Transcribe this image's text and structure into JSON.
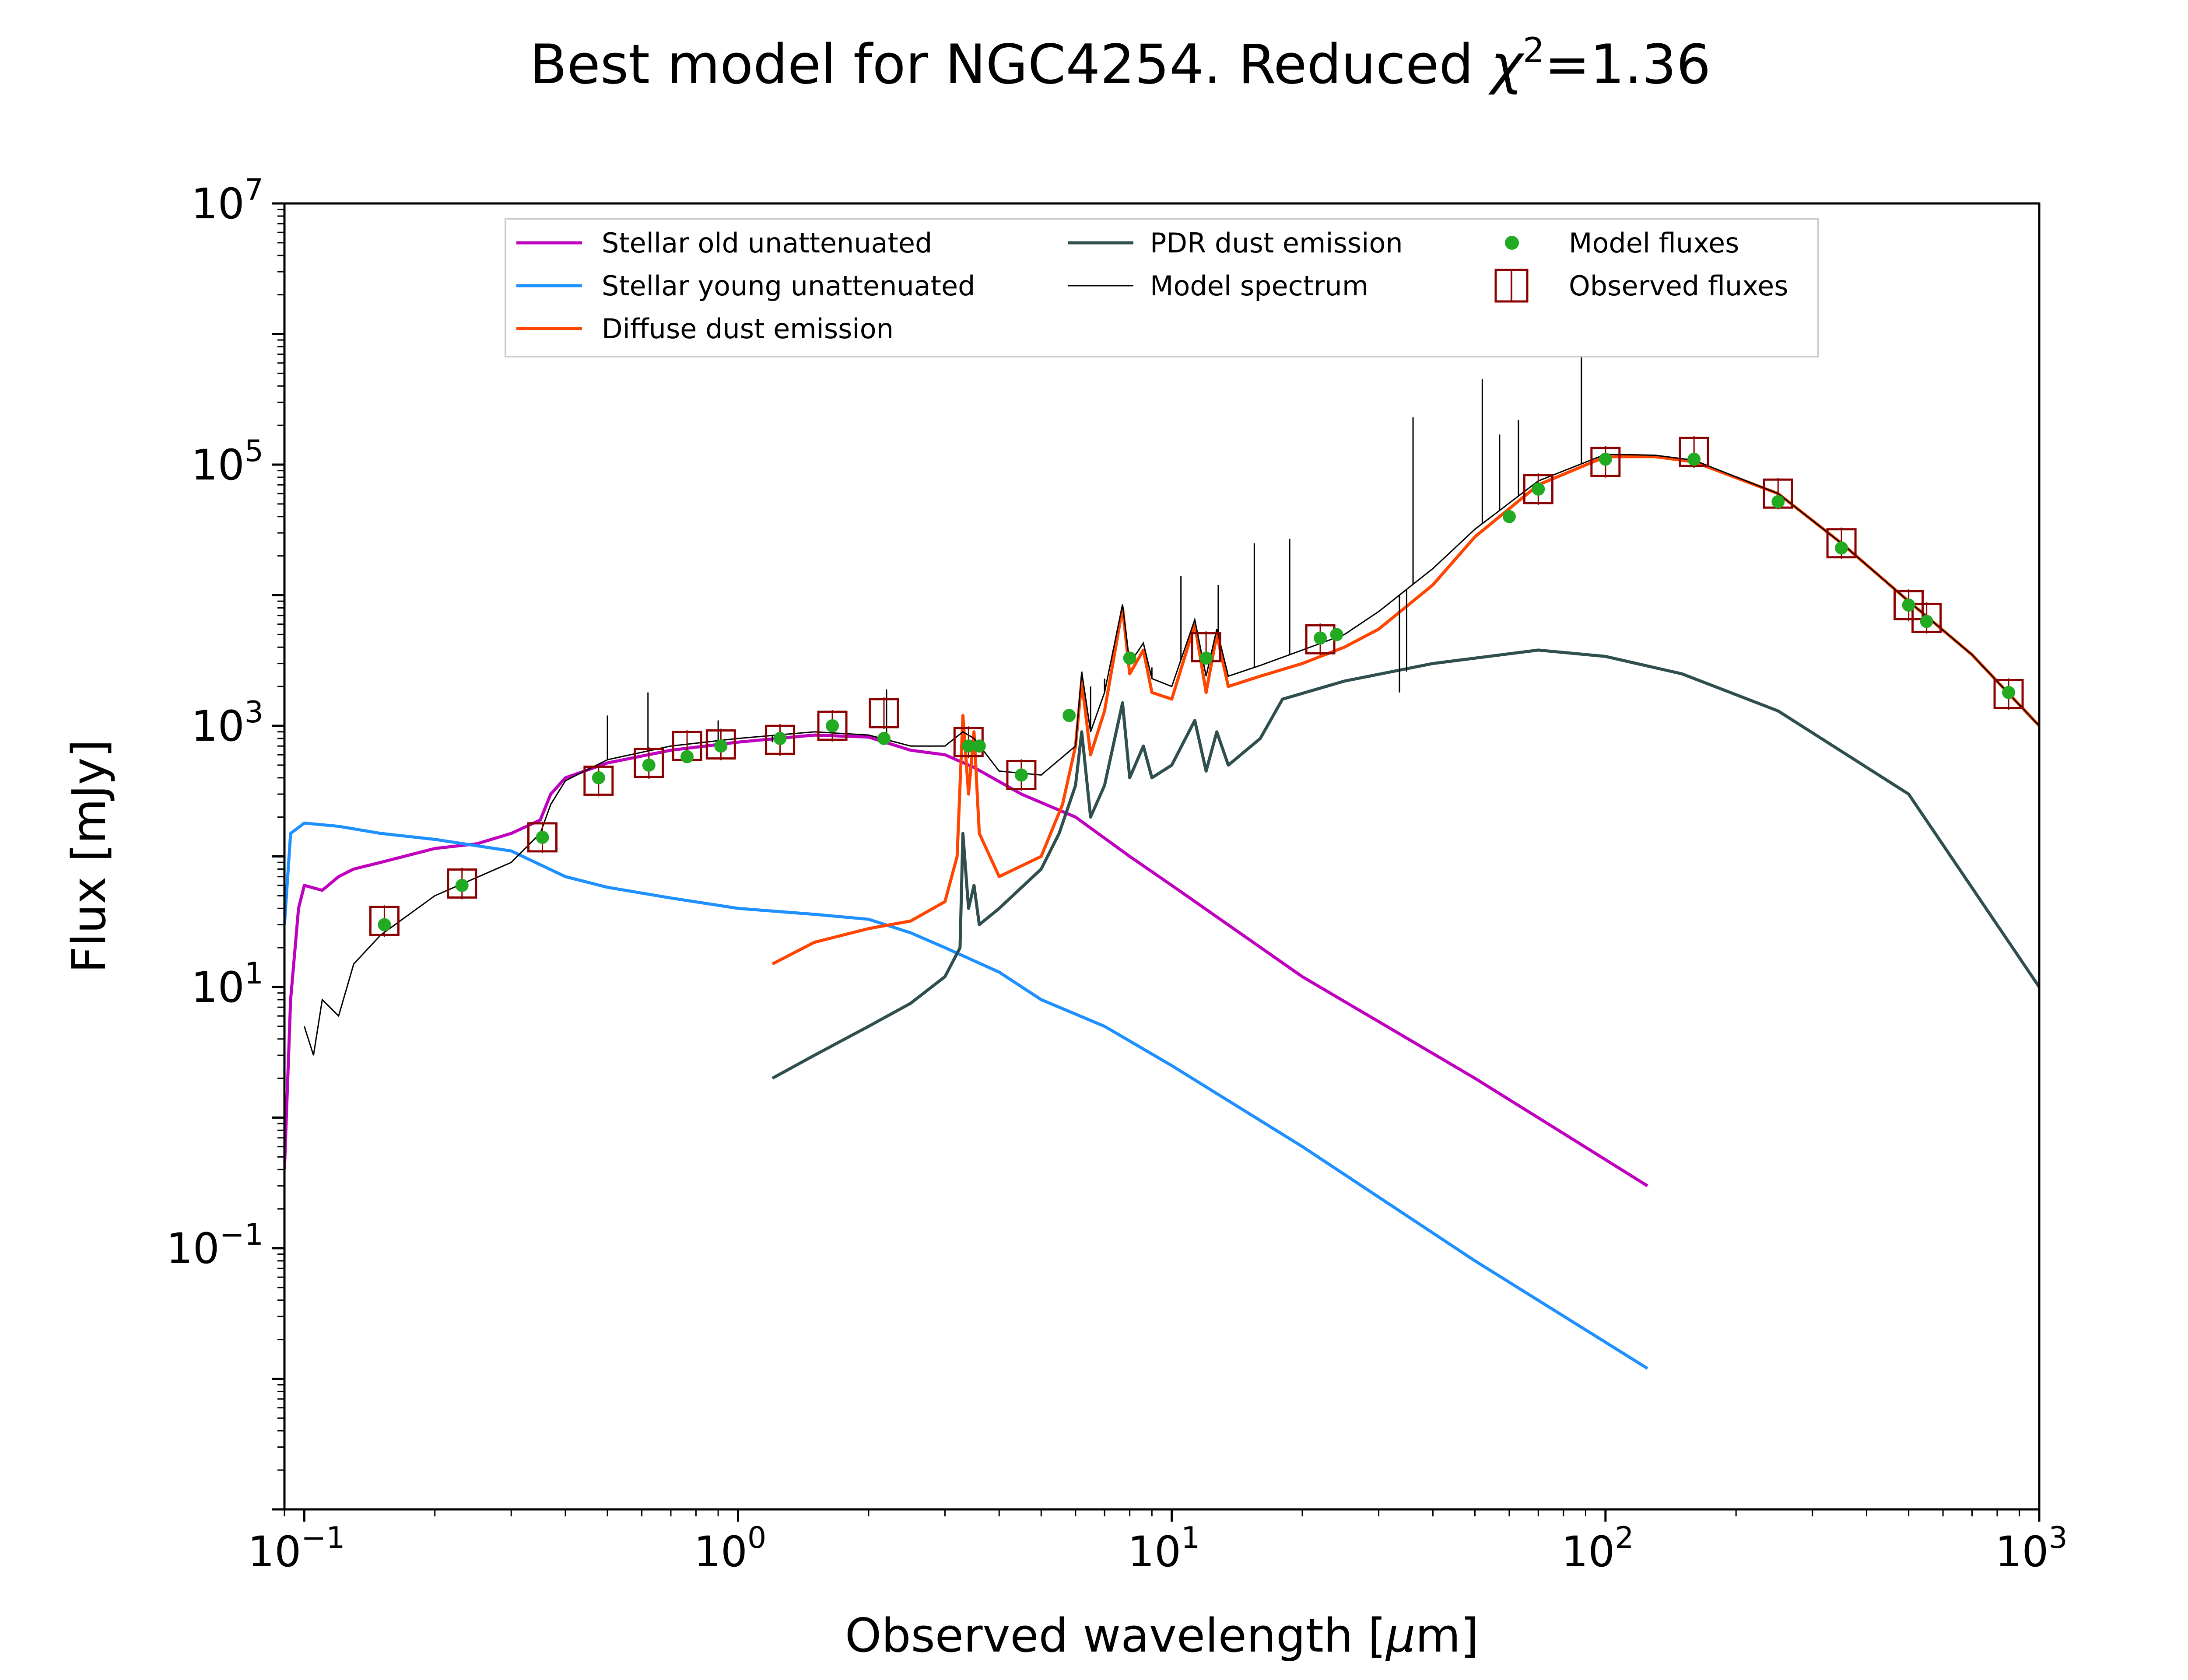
{
  "chart_data": {
    "type": "line",
    "title": "Best model for NGC4254. Reduced χ²=1.36",
    "title_parts": {
      "prefix": "Best model for NGC4254. Reduced ",
      "chi": "χ",
      "sup": "2",
      "suffix": "=1.36"
    },
    "xlabel": "Observed wavelength [μm]",
    "xlabel_parts": {
      "prefix": "Observed wavelength [",
      "mu": "μ",
      "suffix": "m]"
    },
    "ylabel": "Flux [mJy]",
    "xscale": "log",
    "yscale": "log",
    "xlim": [
      0.09,
      1000
    ],
    "ylim": [
      0.001,
      10000000
    ],
    "x_ticks": [
      {
        "base": "10",
        "exp": "−1",
        "value": 0.1
      },
      {
        "base": "10",
        "exp": "0",
        "value": 1
      },
      {
        "base": "10",
        "exp": "1",
        "value": 10
      },
      {
        "base": "10",
        "exp": "2",
        "value": 100
      },
      {
        "base": "10",
        "exp": "3",
        "value": 1000
      }
    ],
    "y_ticks": [
      {
        "base": "10",
        "exp": "−1",
        "value": 0.1
      },
      {
        "base": "10",
        "exp": "1",
        "value": 10
      },
      {
        "base": "10",
        "exp": "3",
        "value": 1000
      },
      {
        "base": "10",
        "exp": "5",
        "value": 100000
      },
      {
        "base": "10",
        "exp": "7",
        "value": 10000000
      }
    ],
    "legend": {
      "location": "top-center",
      "entries": [
        {
          "label": "Stellar old unattenuated",
          "color": "#bf00bf",
          "kind": "line"
        },
        {
          "label": "Stellar young unattenuated",
          "color": "#1e90ff",
          "kind": "line"
        },
        {
          "label": "Diffuse dust emission",
          "color": "#ff4500",
          "kind": "line"
        },
        {
          "label": "PDR dust emission",
          "color": "#2f4f4f",
          "kind": "line"
        },
        {
          "label": "Model spectrum",
          "color": "#000000",
          "kind": "thin-line"
        },
        {
          "label": "Model fluxes",
          "color": "#22aa22",
          "kind": "dot"
        },
        {
          "label": "Observed fluxes",
          "color": "#8b0000",
          "kind": "square"
        }
      ]
    },
    "series": [
      {
        "name": "Stellar old unattenuated",
        "color": "#bf00bf",
        "points": [
          [
            0.09,
            0.4
          ],
          [
            0.093,
            8
          ],
          [
            0.097,
            40
          ],
          [
            0.1,
            60
          ],
          [
            0.11,
            55
          ],
          [
            0.12,
            70
          ],
          [
            0.13,
            80
          ],
          [
            0.15,
            90
          ],
          [
            0.2,
            115
          ],
          [
            0.25,
            125
          ],
          [
            0.3,
            150
          ],
          [
            0.35,
            190
          ],
          [
            0.37,
            300
          ],
          [
            0.4,
            400
          ],
          [
            0.5,
            520
          ],
          [
            0.7,
            650
          ],
          [
            1.0,
            750
          ],
          [
            1.5,
            850
          ],
          [
            2.0,
            820
          ],
          [
            2.5,
            650
          ],
          [
            3.0,
            600
          ],
          [
            3.5,
            480
          ],
          [
            4.5,
            300
          ],
          [
            6,
            200
          ],
          [
            8,
            100
          ],
          [
            10,
            60
          ],
          [
            20,
            12
          ],
          [
            50,
            2
          ],
          [
            125,
            0.3
          ]
        ]
      },
      {
        "name": "Stellar young unattenuated",
        "color": "#1e90ff",
        "points": [
          [
            0.09,
            30
          ],
          [
            0.093,
            150
          ],
          [
            0.1,
            180
          ],
          [
            0.12,
            170
          ],
          [
            0.15,
            150
          ],
          [
            0.2,
            135
          ],
          [
            0.3,
            110
          ],
          [
            0.4,
            70
          ],
          [
            0.5,
            58
          ],
          [
            0.7,
            48
          ],
          [
            1.0,
            40
          ],
          [
            1.5,
            36
          ],
          [
            2.0,
            33
          ],
          [
            2.5,
            26
          ],
          [
            3.0,
            20
          ],
          [
            4.0,
            13
          ],
          [
            5.0,
            8
          ],
          [
            7.0,
            5
          ],
          [
            10,
            2.5
          ],
          [
            20,
            0.6
          ],
          [
            50,
            0.08
          ],
          [
            125,
            0.012
          ]
        ]
      },
      {
        "name": "Diffuse dust emission",
        "color": "#ff4500",
        "points": [
          [
            1.2,
            15
          ],
          [
            1.5,
            22
          ],
          [
            2.0,
            28
          ],
          [
            2.5,
            32
          ],
          [
            3.0,
            45
          ],
          [
            3.2,
            100
          ],
          [
            3.3,
            1200
          ],
          [
            3.4,
            300
          ],
          [
            3.5,
            900
          ],
          [
            3.6,
            150
          ],
          [
            4.0,
            70
          ],
          [
            5.0,
            100
          ],
          [
            5.6,
            250
          ],
          [
            6.0,
            700
          ],
          [
            6.2,
            2200
          ],
          [
            6.5,
            600
          ],
          [
            7.0,
            1300
          ],
          [
            7.7,
            8000
          ],
          [
            8.0,
            2500
          ],
          [
            8.6,
            3800
          ],
          [
            9.0,
            1800
          ],
          [
            10,
            1600
          ],
          [
            11.3,
            6000
          ],
          [
            12.0,
            1800
          ],
          [
            12.7,
            5000
          ],
          [
            13.5,
            2000
          ],
          [
            16,
            2400
          ],
          [
            20,
            3000
          ],
          [
            25,
            4000
          ],
          [
            30,
            5500
          ],
          [
            40,
            12000
          ],
          [
            50,
            28000
          ],
          [
            70,
            70000
          ],
          [
            100,
            115000
          ],
          [
            130,
            115000
          ],
          [
            160,
            105000
          ],
          [
            250,
            60000
          ],
          [
            350,
            25000
          ],
          [
            500,
            9000
          ],
          [
            700,
            3500
          ],
          [
            1000,
            1000
          ]
        ]
      },
      {
        "name": "PDR dust emission",
        "color": "#2f4f4f",
        "points": [
          [
            1.2,
            2
          ],
          [
            1.5,
            3
          ],
          [
            2.0,
            5
          ],
          [
            2.5,
            7.5
          ],
          [
            3.0,
            12
          ],
          [
            3.25,
            20
          ],
          [
            3.3,
            150
          ],
          [
            3.4,
            40
          ],
          [
            3.5,
            60
          ],
          [
            3.6,
            30
          ],
          [
            4.0,
            40
          ],
          [
            5.0,
            80
          ],
          [
            5.5,
            150
          ],
          [
            6.0,
            350
          ],
          [
            6.2,
            900
          ],
          [
            6.5,
            200
          ],
          [
            7.0,
            350
          ],
          [
            7.7,
            1500
          ],
          [
            8.0,
            400
          ],
          [
            8.6,
            700
          ],
          [
            9.0,
            400
          ],
          [
            10,
            500
          ],
          [
            11.3,
            1100
          ],
          [
            12.0,
            450
          ],
          [
            12.7,
            900
          ],
          [
            13.5,
            500
          ],
          [
            16,
            800
          ],
          [
            18,
            1600
          ],
          [
            25,
            2200
          ],
          [
            40,
            3000
          ],
          [
            70,
            3800
          ],
          [
            100,
            3400
          ],
          [
            150,
            2500
          ],
          [
            250,
            1300
          ],
          [
            500,
            300
          ],
          [
            1000,
            10
          ]
        ]
      }
    ],
    "model_spectrum": {
      "name": "Model spectrum",
      "color": "#000000",
      "points": [
        [
          0.1,
          5
        ],
        [
          0.105,
          3
        ],
        [
          0.11,
          8
        ],
        [
          0.12,
          6
        ],
        [
          0.13,
          15
        ],
        [
          0.15,
          25
        ],
        [
          0.2,
          50
        ],
        [
          0.3,
          90
        ],
        [
          0.35,
          150
        ],
        [
          0.37,
          250
        ],
        [
          0.4,
          380
        ],
        [
          0.5,
          550
        ],
        [
          0.7,
          700
        ],
        [
          1.0,
          800
        ],
        [
          1.5,
          900
        ],
        [
          2.0,
          850
        ],
        [
          2.5,
          700
        ],
        [
          3.0,
          700
        ],
        [
          3.3,
          900
        ],
        [
          3.5,
          800
        ],
        [
          4.0,
          450
        ],
        [
          5.0,
          420
        ],
        [
          6.0,
          700
        ],
        [
          6.2,
          2600
        ],
        [
          6.5,
          900
        ],
        [
          7.0,
          1800
        ],
        [
          7.7,
          8500
        ],
        [
          8.0,
          3000
        ],
        [
          8.6,
          4300
        ],
        [
          9.0,
          2300
        ],
        [
          10,
          2000
        ],
        [
          11.3,
          6500
        ],
        [
          12.0,
          2400
        ],
        [
          12.7,
          5500
        ],
        [
          13.5,
          2400
        ],
        [
          16,
          2900
        ],
        [
          20,
          3800
        ],
        [
          25,
          5000
        ],
        [
          30,
          7500
        ],
        [
          40,
          16000
        ],
        [
          50,
          32000
        ],
        [
          70,
          75000
        ],
        [
          100,
          120000
        ],
        [
          130,
          118000
        ],
        [
          160,
          108000
        ],
        [
          250,
          60000
        ],
        [
          350,
          25000
        ],
        [
          500,
          9000
        ],
        [
          700,
          3500
        ],
        [
          1000,
          1000
        ]
      ],
      "lines": [
        [
          0.5,
          1200
        ],
        [
          0.62,
          1800
        ],
        [
          0.9,
          1100
        ],
        [
          1.2,
          750
        ],
        [
          2.2,
          1900
        ],
        [
          6.5,
          2000
        ],
        [
          7.0,
          2300
        ],
        [
          8.0,
          3000
        ],
        [
          9.0,
          2800
        ],
        [
          10.5,
          14000
        ],
        [
          12.8,
          12000
        ],
        [
          15.5,
          25000
        ],
        [
          18.7,
          27000
        ],
        [
          33.5,
          1800
        ],
        [
          34.8,
          2600
        ],
        [
          36,
          230000
        ],
        [
          52,
          450000
        ],
        [
          57,
          170000
        ],
        [
          63,
          220000
        ],
        [
          88,
          700000
        ]
      ]
    },
    "model_fluxes": [
      [
        0.153,
        30
      ],
      [
        0.231,
        60
      ],
      [
        0.354,
        140
      ],
      [
        0.477,
        400
      ],
      [
        0.623,
        500
      ],
      [
        0.763,
        580
      ],
      [
        0.913,
        700
      ],
      [
        1.25,
        800
      ],
      [
        1.65,
        1000
      ],
      [
        2.17,
        800
      ],
      [
        3.4,
        700
      ],
      [
        3.6,
        700
      ],
      [
        4.5,
        420
      ],
      [
        5.8,
        1200
      ],
      [
        8.0,
        3300
      ],
      [
        12,
        3300
      ],
      [
        22,
        4700
      ],
      [
        24,
        5000
      ],
      [
        60,
        40000
      ],
      [
        70,
        65000
      ],
      [
        100,
        110000
      ],
      [
        160,
        110000
      ],
      [
        250,
        52000
      ],
      [
        350,
        23000
      ],
      [
        500,
        8400
      ],
      [
        550,
        6300
      ],
      [
        850,
        1800
      ]
    ],
    "observed_fluxes": [
      [
        0.153,
        32
      ],
      [
        0.231,
        62
      ],
      [
        0.354,
        140
      ],
      [
        0.477,
        380
      ],
      [
        0.623,
        520
      ],
      [
        0.763,
        700
      ],
      [
        0.913,
        720
      ],
      [
        1.25,
        780
      ],
      [
        1.65,
        1000
      ],
      [
        2.17,
        1250
      ],
      [
        3.4,
        750
      ],
      [
        4.5,
        420
      ],
      [
        12,
        4000
      ],
      [
        22,
        4600
      ],
      [
        70,
        65000
      ],
      [
        100,
        105000
      ],
      [
        160,
        125000
      ],
      [
        250,
        60000
      ],
      [
        350,
        25000
      ],
      [
        500,
        8400
      ],
      [
        550,
        6700
      ],
      [
        850,
        1750
      ]
    ]
  }
}
